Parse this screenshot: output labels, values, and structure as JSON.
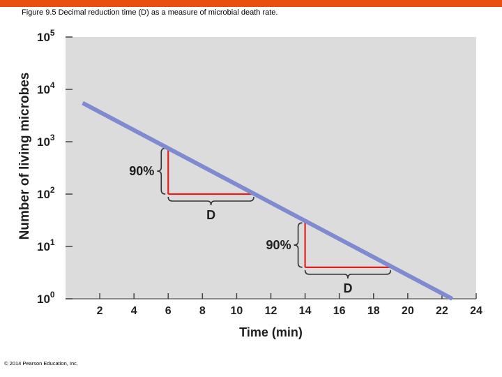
{
  "caption": "Figure 9.5  Decimal reduction time (D) as a measure of microbial death rate.",
  "copyright": "© 2014 Pearson Education, Inc.",
  "colors": {
    "top_bar": "#e8500f",
    "plot_background": "#dcdcdc",
    "line": "#7f8ad0",
    "annotation": "#e02020",
    "brace": "#333333"
  },
  "chart_data": {
    "type": "line",
    "title": "",
    "xlabel": "Time (min)",
    "ylabel": "Number of living microbes",
    "xlim": [
      0,
      24
    ],
    "ylim": [
      1,
      100000
    ],
    "y_scale": "log",
    "grid": false,
    "x_ticks": [
      2,
      4,
      6,
      8,
      10,
      12,
      14,
      16,
      18,
      20,
      22,
      24
    ],
    "y_ticks": [
      {
        "value": 1,
        "base": "10",
        "exp": "0"
      },
      {
        "value": 10,
        "base": "10",
        "exp": "1"
      },
      {
        "value": 100,
        "base": "10",
        "exp": "2"
      },
      {
        "value": 1000,
        "base": "10",
        "exp": "3"
      },
      {
        "value": 10000,
        "base": "10",
        "exp": "4"
      },
      {
        "value": 100000,
        "base": "10",
        "exp": "5"
      }
    ],
    "series": [
      {
        "x": [
          1,
          22.6
        ],
        "y": [
          5500,
          1
        ]
      }
    ],
    "annotations": [
      {
        "vertical_label": "90%",
        "horizontal_label": "D",
        "x_start": 6,
        "x_end": 11,
        "y_high": 800,
        "y_low": 100
      },
      {
        "vertical_label": "90%",
        "horizontal_label": "D",
        "x_start": 14,
        "x_end": 19,
        "y_high": 30,
        "y_low": 4
      }
    ]
  }
}
